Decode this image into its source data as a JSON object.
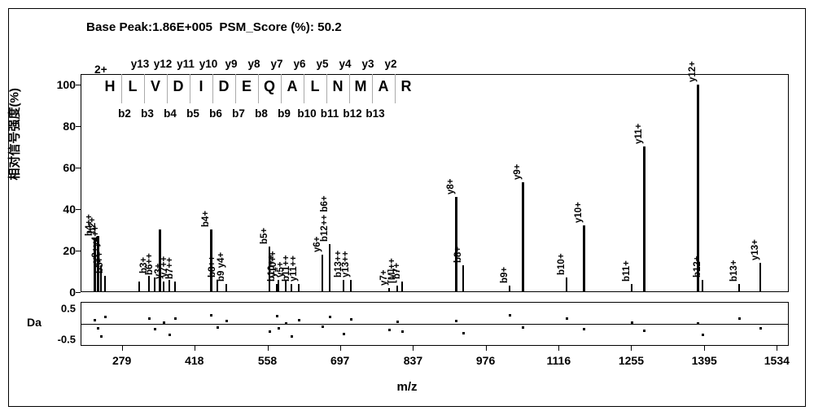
{
  "header": {
    "base_peak_label": "Base Peak:",
    "base_peak_value": "1.86E+005",
    "psm_label": "PSM_Score (%):",
    "psm_value": "50.2"
  },
  "fragmentation": {
    "charge": "2+",
    "y_ions": [
      "y13",
      "y12",
      "y11",
      "y10",
      "y9",
      "y8",
      "y7",
      "y6",
      "y5",
      "y4",
      "y3",
      "y2"
    ],
    "sequence": [
      "H",
      "L",
      "V",
      "D",
      "I",
      "D",
      "E",
      "Q",
      "A",
      "L",
      "N",
      "M",
      "A",
      "R"
    ],
    "b_ions": [
      "b2",
      "b3",
      "b4",
      "b5",
      "b6",
      "b7",
      "b8",
      "b9",
      "b10",
      "b11",
      "b12",
      "b13"
    ]
  },
  "main_chart": {
    "type": "mass-spectrum",
    "y_axis_label": "相对信号强度(%)",
    "y_ticks": [
      0,
      20,
      40,
      60,
      80,
      100
    ],
    "ylim": [
      0,
      105
    ],
    "x_axis_label": "m/z",
    "x_ticks": [
      279,
      418,
      558,
      697,
      837,
      976,
      1116,
      1255,
      1395,
      1534
    ],
    "xlim": [
      200,
      1560
    ],
    "peak_color": "#000000",
    "background_color": "#ffffff",
    "peaks": [
      {
        "mz": 225,
        "intensity": 26,
        "label": "b4++"
      },
      {
        "mz": 231,
        "intensity": 27,
        "label": "b2+"
      },
      {
        "mz": 238,
        "intensity": 13,
        "label": "y2+y4++"
      },
      {
        "mz": 245,
        "intensity": 8,
        "label": "b5++"
      },
      {
        "mz": 310,
        "intensity": 5,
        "label": ""
      },
      {
        "mz": 330,
        "intensity": 8,
        "label": "b3+"
      },
      {
        "mz": 340,
        "intensity": 7,
        "label": "b6++"
      },
      {
        "mz": 350,
        "intensity": 30,
        "label": ""
      },
      {
        "mz": 357,
        "intensity": 5,
        "label": "y3+"
      },
      {
        "mz": 369,
        "intensity": 6,
        "label": "y7++"
      },
      {
        "mz": 380,
        "intensity": 5,
        "label": "b7++"
      },
      {
        "mz": 448,
        "intensity": 30,
        "label": "b4+"
      },
      {
        "mz": 460,
        "intensity": 6,
        "label": "b8++"
      },
      {
        "mz": 477,
        "intensity": 4,
        "label": "b9 y4+"
      },
      {
        "mz": 560,
        "intensity": 22,
        "label": "b5+"
      },
      {
        "mz": 574,
        "intensity": 4,
        "label": "b10++"
      },
      {
        "mz": 578,
        "intensity": 6,
        "label": "y10++"
      },
      {
        "mz": 591,
        "intensity": 6,
        "label": "y5+"
      },
      {
        "mz": 603,
        "intensity": 4,
        "label": "b11++"
      },
      {
        "mz": 617,
        "intensity": 4,
        "label": "y11++"
      },
      {
        "mz": 661,
        "intensity": 18,
        "label": "y6+"
      },
      {
        "mz": 675,
        "intensity": 23,
        "label": "b12++ b6+"
      },
      {
        "mz": 702,
        "intensity": 6,
        "label": "b13++"
      },
      {
        "mz": 716,
        "intensity": 6,
        "label": "y13++"
      },
      {
        "mz": 790,
        "intensity": 2,
        "label": "y7+"
      },
      {
        "mz": 805,
        "intensity": 3,
        "label": "[M]++"
      },
      {
        "mz": 815,
        "intensity": 5,
        "label": "b7+"
      },
      {
        "mz": 917,
        "intensity": 46,
        "label": "y8+"
      },
      {
        "mz": 932,
        "intensity": 13,
        "label": "b8+"
      },
      {
        "mz": 1020,
        "intensity": 3,
        "label": "b9+"
      },
      {
        "mz": 1045,
        "intensity": 53,
        "label": "y9+"
      },
      {
        "mz": 1130,
        "intensity": 7,
        "label": "b10+"
      },
      {
        "mz": 1162,
        "intensity": 32,
        "label": "y10+"
      },
      {
        "mz": 1255,
        "intensity": 4,
        "label": "b11+"
      },
      {
        "mz": 1278,
        "intensity": 70,
        "label": "y11+"
      },
      {
        "mz": 1380,
        "intensity": 100,
        "label": "y12+"
      },
      {
        "mz": 1390,
        "intensity": 6,
        "label": "b12+"
      },
      {
        "mz": 1460,
        "intensity": 4,
        "label": "b13+"
      },
      {
        "mz": 1500,
        "intensity": 14,
        "label": "y13+"
      }
    ]
  },
  "residual_chart": {
    "label": "Da",
    "ticks": [
      -0.5,
      0.5
    ],
    "ylim": [
      -0.7,
      0.7
    ],
    "points": [
      {
        "mz": 225,
        "da": 0.15
      },
      {
        "mz": 231,
        "da": -0.1
      },
      {
        "mz": 238,
        "da": -0.35
      },
      {
        "mz": 245,
        "da": 0.25
      },
      {
        "mz": 330,
        "da": 0.2
      },
      {
        "mz": 340,
        "da": -0.12
      },
      {
        "mz": 357,
        "da": 0.08
      },
      {
        "mz": 369,
        "da": -0.3
      },
      {
        "mz": 380,
        "da": 0.22
      },
      {
        "mz": 448,
        "da": 0.3
      },
      {
        "mz": 460,
        "da": -0.08
      },
      {
        "mz": 477,
        "da": 0.12
      },
      {
        "mz": 560,
        "da": -0.2
      },
      {
        "mz": 574,
        "da": 0.28
      },
      {
        "mz": 578,
        "da": -0.1
      },
      {
        "mz": 591,
        "da": 0.05
      },
      {
        "mz": 603,
        "da": -0.35
      },
      {
        "mz": 617,
        "da": 0.15
      },
      {
        "mz": 661,
        "da": -0.05
      },
      {
        "mz": 675,
        "da": 0.25
      },
      {
        "mz": 702,
        "da": -0.28
      },
      {
        "mz": 716,
        "da": 0.18
      },
      {
        "mz": 790,
        "da": -0.15
      },
      {
        "mz": 805,
        "da": 0.1
      },
      {
        "mz": 815,
        "da": -0.2
      },
      {
        "mz": 917,
        "da": 0.12
      },
      {
        "mz": 932,
        "da": -0.25
      },
      {
        "mz": 1020,
        "da": 0.3
      },
      {
        "mz": 1045,
        "da": -0.08
      },
      {
        "mz": 1130,
        "da": 0.2
      },
      {
        "mz": 1162,
        "da": -0.12
      },
      {
        "mz": 1255,
        "da": 0.08
      },
      {
        "mz": 1278,
        "da": -0.18
      },
      {
        "mz": 1380,
        "da": 0.05
      },
      {
        "mz": 1390,
        "da": -0.3
      },
      {
        "mz": 1460,
        "da": 0.22
      },
      {
        "mz": 1500,
        "da": -0.1
      }
    ]
  },
  "style": {
    "axis_color": "#000000",
    "label_fontsize": 15,
    "tick_fontsize": 14,
    "header_fontsize": 15.2
  }
}
